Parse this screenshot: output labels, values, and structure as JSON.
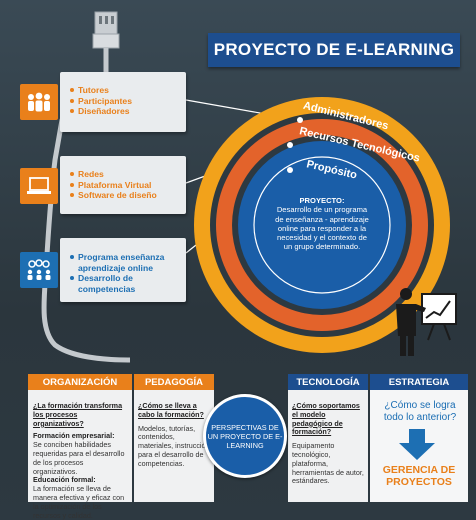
{
  "title": "PROYECTO DE E-LEARNING",
  "cards": [
    {
      "items": [
        "Tutores",
        "Participantes",
        "Diseñadores"
      ],
      "icon": "people-icon"
    },
    {
      "items": [
        "Redes",
        "Plataforma Virtual",
        "Software de diseño"
      ],
      "icon": "laptop-icon"
    },
    {
      "items": [
        "Programa enseñanza aprendizaje online",
        "Desarrollo de competencias"
      ],
      "icon": "team-gears-icon"
    }
  ],
  "rings": {
    "outer": "Administradores",
    "middle": "Recursos Tecnológicos",
    "inner": "Propósito"
  },
  "center": {
    "heading": "PROYECTO:",
    "body": "Desarrollo de un programa de enseñanza - aprendizaje online para responder a la necesidad y el contexto de un grupo determinado."
  },
  "tabs": {
    "organizacion": "ORGANIZACIÓN",
    "pedagogia": "PEDAGOGÍA",
    "tecnologia": "TECNOLOGÍA",
    "estrategia": "ESTRATEGIA"
  },
  "organizacion": {
    "question": "¿La formación transforma los procesos organizativos?",
    "h1": "Formación empresarial:",
    "t1": "Se conciben habilidades requeridas para el desarrollo de los procesos organizativos.",
    "h2": "Educación formal:",
    "t2": "La formación se lleva de manera efectiva y eficaz con la optimización de los recursos y calidad."
  },
  "pedagogia": {
    "question": "¿Cómo se lleva a cabo la formación?",
    "text": "Modelos, tutorías, contenidos, materiales, instrucción para el desarrollo de competencias."
  },
  "perspectivas": "PERSPECTIVAS DE UN PROYECTO DE E-LEARNING",
  "tecnologia": {
    "question": "¿Cómo soportamos el modelo pedagógico de formación?",
    "text": "Equipamento tecnológico, plataforma, herramientas de autor, estándares."
  },
  "estrategia": {
    "question": "¿Cómo se logra todo lo anterior?",
    "answer": "GERENCIA DE PROYECTOS"
  },
  "colors": {
    "orange": "#e9801b",
    "blue": "#1d4e8f",
    "ring_outer": "#f2a21b",
    "ring_middle": "#e3632b",
    "ring_inner": "#1a5ea8"
  }
}
